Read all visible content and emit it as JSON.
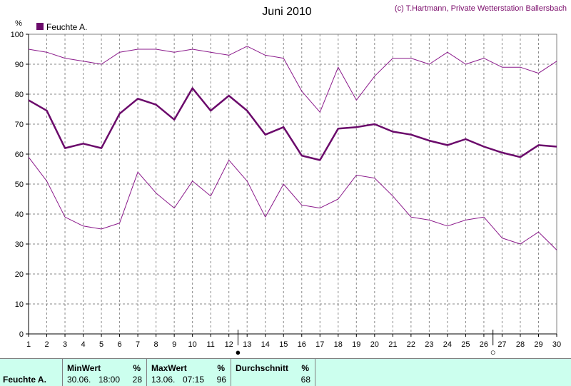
{
  "chart_data": {
    "type": "line",
    "title": "Juni 2010",
    "credit": "(c) T.Hartmann, Private Wetterstation Ballersbach",
    "unit_label": "%",
    "legend": [
      "Feuchte A."
    ],
    "x": [
      1,
      2,
      3,
      4,
      5,
      6,
      7,
      8,
      9,
      10,
      11,
      12,
      13,
      14,
      15,
      16,
      17,
      18,
      19,
      20,
      21,
      22,
      23,
      24,
      25,
      26,
      27,
      28,
      29,
      30
    ],
    "ylim": [
      0,
      100
    ],
    "yticks": [
      0,
      10,
      20,
      30,
      40,
      50,
      60,
      70,
      80,
      90,
      100
    ],
    "grid": true,
    "series": [
      {
        "name": "Feuchte A.",
        "role": "max",
        "color": "#8b1a8b",
        "values": [
          95,
          94,
          92,
          91,
          90,
          94,
          95,
          95,
          94,
          95,
          94,
          93,
          96,
          93,
          92,
          81,
          74,
          89,
          78,
          86,
          92,
          92,
          90,
          94,
          90,
          92,
          89,
          89,
          87,
          91
        ]
      },
      {
        "name": "Feuchte A.",
        "role": "avg",
        "color": "#6b0a6b",
        "values": [
          78,
          74.5,
          62,
          63.5,
          62,
          73.5,
          78.5,
          76.5,
          71.5,
          82,
          74.5,
          79.5,
          74.5,
          66.5,
          69,
          59.5,
          58,
          68.5,
          69,
          70,
          67.5,
          66.5,
          64.5,
          63,
          65,
          62.5,
          60.5,
          59,
          63,
          62.5
        ]
      },
      {
        "name": "Feuchte A.",
        "role": "min",
        "color": "#8b1a8b",
        "values": [
          59,
          51,
          39,
          36,
          35,
          37,
          54,
          47,
          42,
          51,
          46,
          58,
          51,
          39,
          50,
          43,
          42,
          45,
          53,
          52,
          46,
          39,
          38,
          36,
          38,
          39,
          32,
          30,
          34,
          28
        ]
      }
    ],
    "moon_markers": [
      {
        "day": 12.5,
        "phase": "full",
        "symbol": "●"
      },
      {
        "day": 26.5,
        "phase": "new",
        "symbol": "○"
      }
    ]
  },
  "stats": {
    "row_label": "Feuchte A.",
    "min": {
      "header": "MinWert",
      "unit": "%",
      "date": "30.06.",
      "time": "18:00",
      "value": "28"
    },
    "max": {
      "header": "MaxWert",
      "unit": "%",
      "date": "13.06.",
      "time": "07:15",
      "value": "96"
    },
    "avg": {
      "header": "Durchschnitt",
      "unit": "%",
      "value": "68"
    }
  }
}
